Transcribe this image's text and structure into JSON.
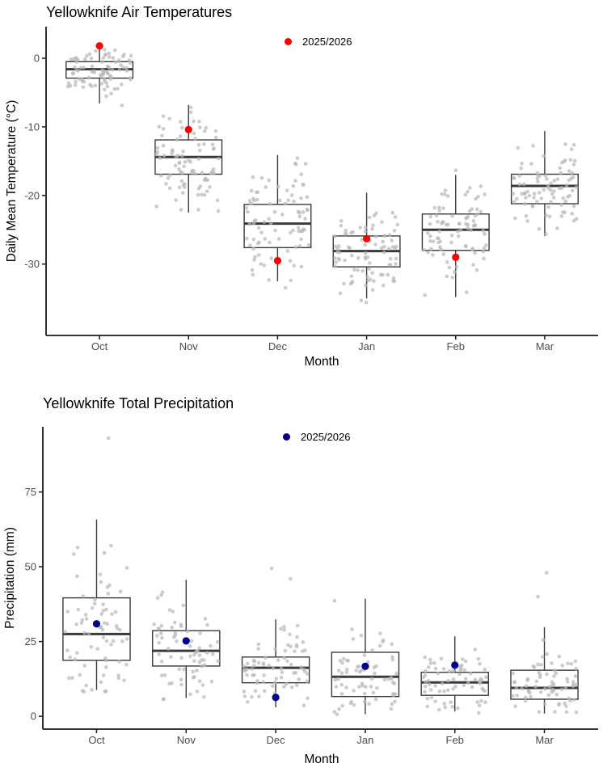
{
  "chart_data": [
    {
      "id": "temperature",
      "type": "boxplot-jitter",
      "title": "Yellowknife Air Temperatures",
      "xlabel": "Month",
      "ylabel": "Daily Mean Temperature (°C)",
      "legend": {
        "label": "2025/2026",
        "color": "#ff0000"
      },
      "categories": [
        "Oct",
        "Nov",
        "Dec",
        "Jan",
        "Feb",
        "Mar"
      ],
      "yticks": [
        0,
        -10,
        -20,
        -30
      ],
      "ylim": [
        -40.4,
        4.6
      ],
      "grid": false,
      "legend_position": "top-center-inside",
      "boxes": [
        {
          "month": "Oct",
          "whisker_low": -6.6,
          "q1": -2.9,
          "median": -1.6,
          "q3": -0.5,
          "whisker_high": 1.4,
          "value_2025_2026": 1.8,
          "outliers": [],
          "jitter": {
            "count": 88,
            "min": -8.2,
            "max": 1.5,
            "seed": 11
          }
        },
        {
          "month": "Nov",
          "whisker_low": -22.5,
          "q1": -16.9,
          "median": -14.4,
          "q3": -11.9,
          "whisker_high": -6.8,
          "value_2025_2026": -10.4,
          "outliers": [],
          "jitter": {
            "count": 88,
            "min": -22.5,
            "max": -6.8,
            "seed": 12
          }
        },
        {
          "month": "Dec",
          "whisker_low": -32.5,
          "q1": -27.6,
          "median": -24.1,
          "q3": -21.3,
          "whisker_high": -14.1,
          "value_2025_2026": -29.5,
          "outliers": [],
          "jitter": {
            "count": 88,
            "min": -34.5,
            "max": -13.2,
            "seed": 13
          }
        },
        {
          "month": "Jan",
          "whisker_low": -35.0,
          "q1": -30.4,
          "median": -28.1,
          "q3": -25.9,
          "whisker_high": -19.6,
          "value_2025_2026": -26.3,
          "outliers": [],
          "jitter": {
            "count": 88,
            "min": -37.3,
            "max": -18.6,
            "seed": 14
          }
        },
        {
          "month": "Feb",
          "whisker_low": -34.8,
          "q1": -28.0,
          "median": -25.0,
          "q3": -22.7,
          "whisker_high": -17.0,
          "value_2025_2026": -29.0,
          "outliers": [],
          "jitter": {
            "count": 88,
            "min": -34.8,
            "max": -15.8,
            "seed": 15
          }
        },
        {
          "month": "Mar",
          "whisker_low": -25.9,
          "q1": -21.2,
          "median": -18.6,
          "q3": -16.9,
          "whisker_high": -10.6,
          "value_2025_2026": null,
          "outliers": [],
          "jitter": {
            "count": 88,
            "min": -27.5,
            "max": -9.8,
            "seed": 16
          }
        }
      ]
    },
    {
      "id": "precipitation",
      "type": "boxplot-jitter",
      "title": "Yellowknife Total Precipitation",
      "xlabel": "Month",
      "ylabel": "Precipitation (mm)",
      "legend": {
        "label": "2025/2026",
        "color": "#00008b"
      },
      "categories": [
        "Oct",
        "Nov",
        "Dec",
        "Jan",
        "Feb",
        "Mar"
      ],
      "yticks": [
        0,
        25,
        50,
        75
      ],
      "ylim": [
        -4.3,
        96.8
      ],
      "grid": false,
      "legend_position": "top-center-inside",
      "boxes": [
        {
          "month": "Oct",
          "whisker_low": 8.8,
          "q1": 18.7,
          "median": 27.5,
          "q3": 39.6,
          "whisker_high": 65.8,
          "value_2025_2026": 30.9,
          "outliers": [
            93
          ],
          "jitter": {
            "count": 72,
            "min": 7,
            "max": 66,
            "seed": 21
          }
        },
        {
          "month": "Nov",
          "whisker_low": 6.1,
          "q1": 16.8,
          "median": 21.9,
          "q3": 28.6,
          "whisker_high": 45.6,
          "value_2025_2026": 25.2,
          "outliers": [],
          "jitter": {
            "count": 72,
            "min": 5,
            "max": 45.6,
            "seed": 22
          }
        },
        {
          "month": "Dec",
          "whisker_low": 3.0,
          "q1": 11.2,
          "median": 16.2,
          "q3": 19.8,
          "whisker_high": 32.4,
          "value_2025_2026": 6.3,
          "outliers": [
            46,
            49.5
          ],
          "jitter": {
            "count": 72,
            "min": 2,
            "max": 32.4,
            "seed": 23
          }
        },
        {
          "month": "Jan",
          "whisker_low": 0.7,
          "q1": 6.6,
          "median": 13.2,
          "q3": 21.4,
          "whisker_high": 39.3,
          "value_2025_2026": 16.7,
          "outliers": [],
          "jitter": {
            "count": 72,
            "min": 0.5,
            "max": 39.3,
            "seed": 24
          }
        },
        {
          "month": "Feb",
          "whisker_low": 1.6,
          "q1": 7.0,
          "median": 11.3,
          "q3": 14.7,
          "whisker_high": 26.7,
          "value_2025_2026": 17.1,
          "outliers": [],
          "jitter": {
            "count": 72,
            "min": 1,
            "max": 26.7,
            "seed": 25
          }
        },
        {
          "month": "Mar",
          "whisker_low": 0.9,
          "q1": 5.7,
          "median": 9.5,
          "q3": 15.4,
          "whisker_high": 29.8,
          "value_2025_2026": null,
          "outliers": [
            40,
            48
          ],
          "jitter": {
            "count": 72,
            "min": 0.5,
            "max": 29.8,
            "seed": 26
          }
        }
      ]
    }
  ],
  "style": {
    "jitter_color": "#b9b9b9",
    "box_line_color": "#3a3a3a",
    "axis_line_color": "#1a1a1a",
    "tick_label_color": "#4d4d4d"
  }
}
